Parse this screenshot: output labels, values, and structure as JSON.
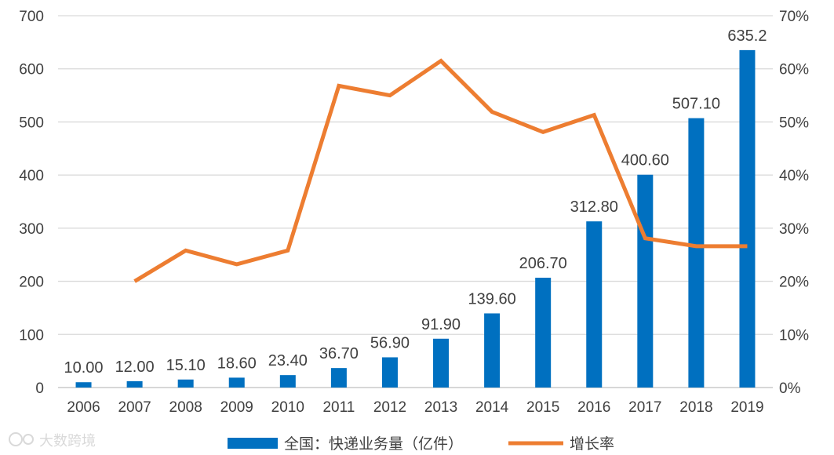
{
  "chart_data": {
    "type": "bar",
    "title": "",
    "xlabel": "",
    "ylabel": "",
    "categories": [
      "2006",
      "2007",
      "2008",
      "2009",
      "2010",
      "2011",
      "2012",
      "2013",
      "2014",
      "2015",
      "2016",
      "2017",
      "2018",
      "2019"
    ],
    "series": [
      {
        "name": "全国：快递业务量（亿件）",
        "type": "bar",
        "axis": "left",
        "color": "#0070c0",
        "values": [
          10.0,
          12.0,
          15.1,
          18.6,
          23.4,
          36.7,
          56.9,
          91.9,
          139.6,
          206.7,
          312.8,
          400.6,
          507.1,
          635.2
        ],
        "labels": [
          "10.00",
          "12.00",
          "15.10",
          "18.60",
          "23.40",
          "36.70",
          "56.90",
          "91.90",
          "139.60",
          "206.70",
          "312.80",
          "400.60",
          "507.10",
          "635.2"
        ]
      },
      {
        "name": "增长率",
        "type": "line",
        "axis": "right",
        "color": "#ed7d31",
        "values": [
          null,
          20.0,
          25.8,
          23.2,
          25.8,
          56.8,
          55.0,
          61.5,
          51.9,
          48.1,
          51.3,
          28.1,
          26.6,
          26.6
        ]
      }
    ],
    "left_axis": {
      "min": 0,
      "max": 700,
      "step": 100,
      "ticks": [
        "0",
        "100",
        "200",
        "300",
        "400",
        "500",
        "600",
        "700"
      ]
    },
    "right_axis": {
      "min": 0,
      "max": 70,
      "step": 10,
      "ticks": [
        "0%",
        "10%",
        "20%",
        "30%",
        "40%",
        "50%",
        "60%",
        "70%"
      ]
    },
    "grid": true,
    "legend_position": "bottom"
  },
  "legend": {
    "bar_label": "全国：快递业务量（亿件）",
    "line_label": "增长率"
  },
  "watermark": {
    "text": "大数跨境"
  }
}
